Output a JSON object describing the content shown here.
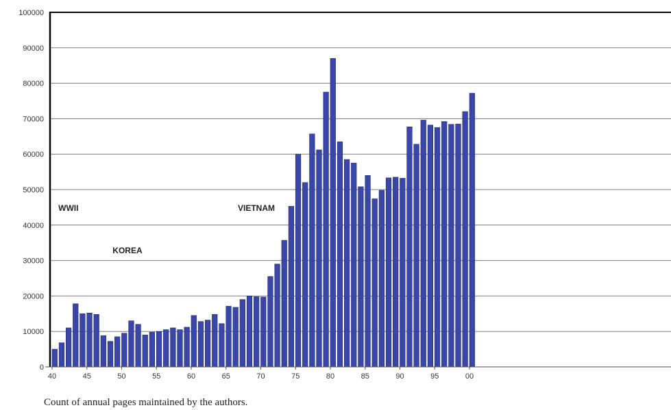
{
  "caption": "Count of annual pages maintained by the authors.",
  "colors": {
    "bar": "#3a47a8",
    "bar_edge": "#1f2a7a",
    "grid": "#7a7a7a",
    "axis": "#000000"
  },
  "chart_data": {
    "type": "bar",
    "title": "",
    "xlabel": "",
    "ylabel": "",
    "ylim": [
      0,
      100000
    ],
    "grid": true,
    "legend": "none",
    "yticks": [
      "0",
      "10000",
      "20000",
      "30000",
      "40000",
      "50000",
      "60000",
      "70000",
      "80000",
      "90000",
      "100000"
    ],
    "xticks": [
      {
        "label": "40",
        "year": 1940
      },
      {
        "label": "45",
        "year": 1945
      },
      {
        "label": "50",
        "year": 1950
      },
      {
        "label": "55",
        "year": 1955
      },
      {
        "label": "60",
        "year": 1960
      },
      {
        "label": "65",
        "year": 1965
      },
      {
        "label": "70",
        "year": 1970
      },
      {
        "label": "75",
        "year": 1975
      },
      {
        "label": "80",
        "year": 1980
      },
      {
        "label": "85",
        "year": 1985
      },
      {
        "label": "90",
        "year": 1990
      },
      {
        "label": "95",
        "year": 1995
      },
      {
        "label": "00",
        "year": 2000
      }
    ],
    "categories": [
      1940,
      1941,
      1942,
      1943,
      1944,
      1945,
      1946,
      1947,
      1948,
      1949,
      1950,
      1951,
      1952,
      1953,
      1954,
      1955,
      1956,
      1957,
      1958,
      1959,
      1960,
      1961,
      1962,
      1963,
      1964,
      1965,
      1966,
      1967,
      1968,
      1969,
      1970,
      1971,
      1972,
      1973,
      1974,
      1975,
      1976,
      1977,
      1978,
      1979,
      1980,
      1981,
      1982,
      1983,
      1984,
      1985,
      1986,
      1987,
      1988,
      1989,
      1990,
      1991,
      1992,
      1993,
      1994,
      1995,
      1996,
      1997,
      1998,
      1999,
      2000,
      2001,
      2002
    ],
    "values": [
      5000,
      6800,
      11000,
      17800,
      15000,
      15200,
      14800,
      8800,
      7200,
      8500,
      9500,
      13000,
      12000,
      9000,
      9800,
      10000,
      10500,
      11000,
      10500,
      11200,
      14500,
      12800,
      13200,
      14800,
      12200,
      17100,
      16800,
      19000,
      20000,
      19800,
      19700,
      25500,
      29000,
      35700,
      45300,
      60000,
      52000,
      65700,
      61200,
      77500,
      87000,
      63500,
      58500,
      57500,
      50800,
      54000,
      47400,
      49800,
      53300,
      53500,
      53200,
      67700,
      62800,
      69600,
      68200,
      67500,
      69200,
      68400,
      68500,
      72000,
      77200,
      0,
      0
    ],
    "annotations": [
      {
        "text": "WWII",
        "year": 1940.9,
        "value": 44000
      },
      {
        "text": "KOREA",
        "year": 1948.7,
        "value": 32000
      },
      {
        "text": "VIETNAM",
        "year": 1966.7,
        "value": 44000
      }
    ]
  }
}
